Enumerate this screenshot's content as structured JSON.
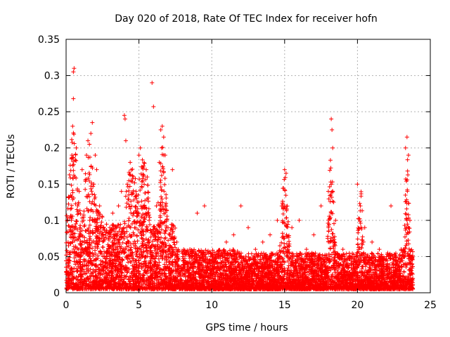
{
  "chart_data": {
    "type": "scatter",
    "title": "Day 020 of 2018, Rate Of TEC Index for receiver hofn",
    "xlabel": "GPS time / hours",
    "ylabel": "ROTI / TECUs",
    "xlim": [
      0,
      25
    ],
    "ylim": [
      0,
      0.35
    ],
    "x_ticks": [
      0,
      5,
      10,
      15,
      20,
      25
    ],
    "x_tick_labels": [
      "0",
      "5",
      "10",
      "15",
      "20",
      "25"
    ],
    "y_ticks": [
      0,
      0.05,
      0.1,
      0.15,
      0.2,
      0.25,
      0.3,
      0.35
    ],
    "y_tick_labels": [
      "0",
      "0.05",
      "0.1",
      "0.15",
      "0.2",
      "0.25",
      "0.3",
      "0.35"
    ],
    "grid": true,
    "marker": "+",
    "series": [
      {
        "name": "ROTI",
        "color": "#ff0000",
        "points": [
          [
            0.1,
            0.02
          ],
          [
            0.2,
            0.045
          ],
          [
            0.3,
            0.09
          ],
          [
            0.4,
            0.19
          ],
          [
            0.45,
            0.23
          ],
          [
            0.5,
            0.268
          ],
          [
            0.5,
            0.305
          ],
          [
            0.55,
            0.31
          ],
          [
            0.6,
            0.16
          ],
          [
            0.7,
            0.2
          ],
          [
            0.8,
            0.12
          ],
          [
            0.9,
            0.14
          ],
          [
            1.0,
            0.08
          ],
          [
            1.1,
            0.17
          ],
          [
            1.2,
            0.1
          ],
          [
            1.3,
            0.06
          ],
          [
            1.4,
            0.19
          ],
          [
            1.5,
            0.21
          ],
          [
            1.6,
            0.205
          ],
          [
            1.7,
            0.22
          ],
          [
            1.8,
            0.235
          ],
          [
            1.9,
            0.15
          ],
          [
            2.0,
            0.19
          ],
          [
            2.1,
            0.17
          ],
          [
            2.3,
            0.12
          ],
          [
            2.5,
            0.08
          ],
          [
            2.8,
            0.05
          ],
          [
            3.0,
            0.09
          ],
          [
            3.2,
            0.11
          ],
          [
            3.4,
            0.06
          ],
          [
            3.6,
            0.12
          ],
          [
            3.8,
            0.14
          ],
          [
            4.0,
            0.245
          ],
          [
            4.05,
            0.24
          ],
          [
            4.1,
            0.21
          ],
          [
            4.2,
            0.15
          ],
          [
            4.4,
            0.18
          ],
          [
            4.6,
            0.16
          ],
          [
            4.8,
            0.14
          ],
          [
            5.0,
            0.19
          ],
          [
            5.1,
            0.2
          ],
          [
            5.3,
            0.12
          ],
          [
            5.5,
            0.17
          ],
          [
            5.7,
            0.1
          ],
          [
            5.9,
            0.29
          ],
          [
            6.0,
            0.257
          ],
          [
            6.2,
            0.12
          ],
          [
            6.4,
            0.18
          ],
          [
            6.5,
            0.225
          ],
          [
            6.6,
            0.23
          ],
          [
            6.7,
            0.215
          ],
          [
            6.8,
            0.19
          ],
          [
            7.0,
            0.09
          ],
          [
            7.3,
            0.17
          ],
          [
            7.6,
            0.07
          ],
          [
            8.0,
            0.05
          ],
          [
            8.5,
            0.06
          ],
          [
            9.0,
            0.11
          ],
          [
            9.5,
            0.12
          ],
          [
            10.0,
            0.05
          ],
          [
            10.5,
            0.04
          ],
          [
            11.0,
            0.07
          ],
          [
            11.5,
            0.08
          ],
          [
            12.0,
            0.12
          ],
          [
            12.5,
            0.09
          ],
          [
            13.0,
            0.06
          ],
          [
            13.5,
            0.07
          ],
          [
            14.0,
            0.08
          ],
          [
            14.5,
            0.1
          ],
          [
            15.0,
            0.17
          ],
          [
            15.1,
            0.165
          ],
          [
            15.5,
            0.09
          ],
          [
            16.0,
            0.1
          ],
          [
            16.5,
            0.06
          ],
          [
            17.0,
            0.08
          ],
          [
            17.5,
            0.12
          ],
          [
            18.0,
            0.14
          ],
          [
            18.2,
            0.24
          ],
          [
            18.25,
            0.225
          ],
          [
            18.3,
            0.2
          ],
          [
            18.5,
            0.1
          ],
          [
            19.0,
            0.06
          ],
          [
            19.5,
            0.05
          ],
          [
            20.0,
            0.15
          ],
          [
            20.2,
            0.12
          ],
          [
            20.5,
            0.09
          ],
          [
            21.0,
            0.07
          ],
          [
            21.5,
            0.06
          ],
          [
            22.0,
            0.05
          ],
          [
            22.3,
            0.12
          ],
          [
            22.5,
            0.04
          ],
          [
            23.0,
            0.06
          ],
          [
            23.3,
            0.2
          ],
          [
            23.4,
            0.215
          ],
          [
            23.5,
            0.19
          ],
          [
            23.6,
            0.1
          ],
          [
            23.7,
            0.05
          ],
          [
            23.8,
            0.02
          ]
        ]
      }
    ]
  }
}
